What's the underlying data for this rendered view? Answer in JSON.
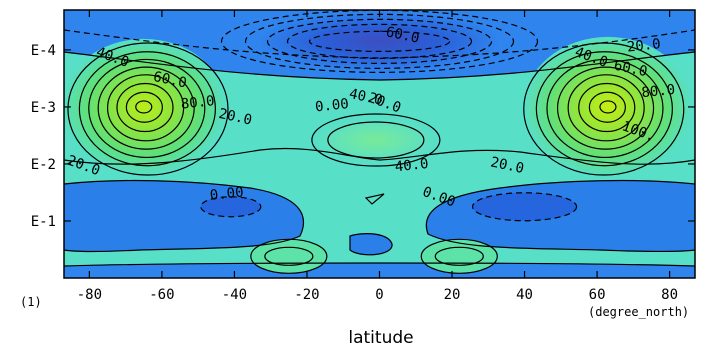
{
  "chart_data": {
    "type": "contour",
    "title": "",
    "xlabel": "latitude",
    "x_unit": "(degree_north)",
    "y_unit": "(1)",
    "xlim": [
      -87,
      87
    ],
    "ylim": [
      0,
      4.7
    ],
    "x_ticks": [
      -80,
      -60,
      -40,
      -20,
      0,
      20,
      40,
      60,
      80
    ],
    "x_tick_labels": [
      "-80",
      "-60",
      "-40",
      "-20",
      "0",
      "20",
      "40",
      "60",
      "80"
    ],
    "y_ticks": [
      1,
      2,
      3,
      4
    ],
    "y_tick_labels": [
      "E-1",
      "E-2",
      "E-3",
      "E-4"
    ],
    "contour_interval": 10,
    "negative_contours": "dashed",
    "contour_labels": [
      {
        "text": "-60.0",
        "x": 5,
        "y": 4.2
      },
      {
        "text": "20.0",
        "x": 73,
        "y": 4.0
      },
      {
        "text": "40.0",
        "x": -74,
        "y": 3.8
      },
      {
        "text": "60.0",
        "x": -58,
        "y": 3.4
      },
      {
        "text": "80.0",
        "x": -50,
        "y": 3.0
      },
      {
        "text": "40.0",
        "x": 58,
        "y": 3.8
      },
      {
        "text": "60.0",
        "x": 69,
        "y": 3.6
      },
      {
        "text": "80.0",
        "x": 77,
        "y": 3.2
      },
      {
        "text": "100.",
        "x": 71,
        "y": 2.5
      },
      {
        "text": "40.0",
        "x": -4,
        "y": 3.1
      },
      {
        "text": "0.00",
        "x": -13,
        "y": 2.95
      },
      {
        "text": "20.0",
        "x": 1,
        "y": 3.0
      },
      {
        "text": "20.0",
        "x": -40,
        "y": 2.75
      },
      {
        "text": "40.0",
        "x": 9,
        "y": 1.9
      },
      {
        "text": "20.0",
        "x": -82,
        "y": 1.9
      },
      {
        "text": "20.0",
        "x": 35,
        "y": 1.9
      },
      {
        "text": "0.00",
        "x": -42,
        "y": 1.4
      },
      {
        "text": "0.00",
        "x": 16,
        "y": 1.35
      }
    ],
    "grid": false,
    "legend": "none"
  }
}
